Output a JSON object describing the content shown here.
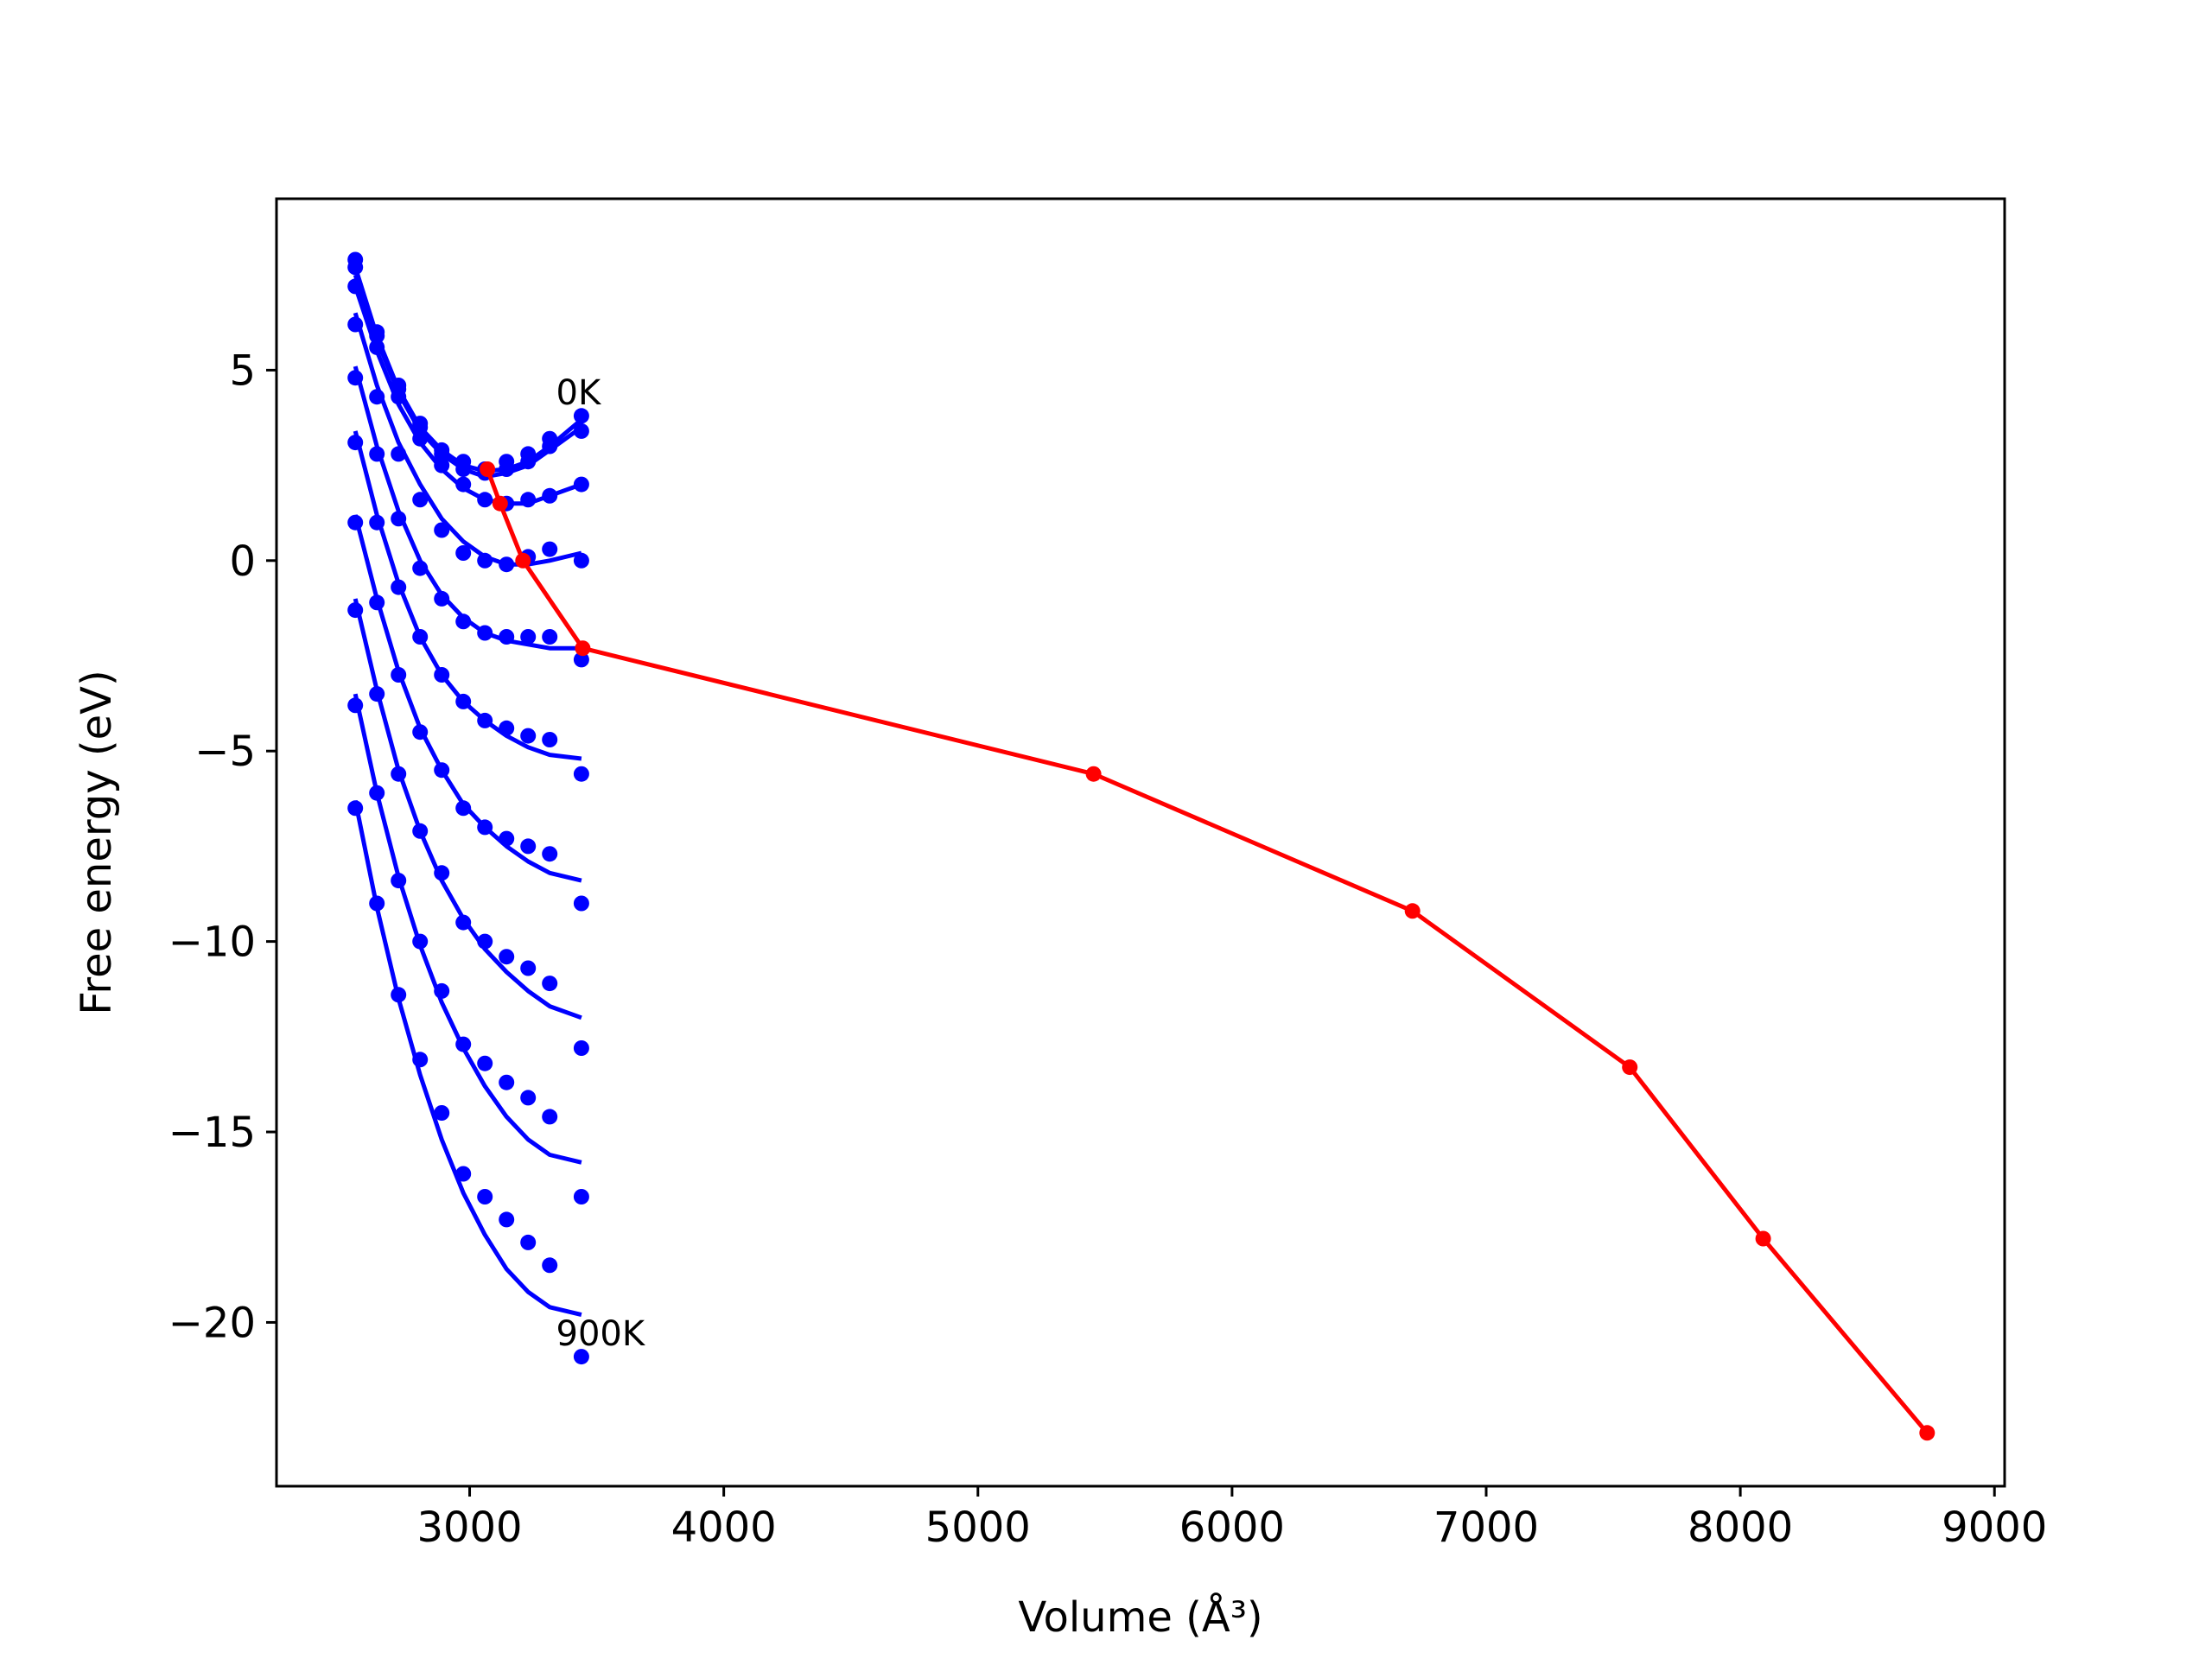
{
  "chart_data": {
    "type": "line",
    "title": "",
    "xlabel": "Volume (Å³)",
    "ylabel": "Free energy (eV)",
    "xlim": [
      2240,
      9040
    ],
    "ylim": [
      -24.3,
      9.5
    ],
    "xticks": [
      3000,
      4000,
      5000,
      6000,
      7000,
      8000,
      9000
    ],
    "yticks": [
      -20,
      -15,
      -10,
      -5,
      0,
      5
    ],
    "xtick_labels": [
      "3000",
      "4000",
      "5000",
      "6000",
      "7000",
      "8000",
      "9000"
    ],
    "ytick_labels": [
      "−20",
      "−15",
      "−10",
      "−5",
      "0",
      "5"
    ],
    "grid": false,
    "colors": {
      "curves": "#0000ff",
      "minima": "#ff0000"
    },
    "annotations": [
      {
        "text": "0K",
        "x": 3340,
        "y": 4.1
      },
      {
        "text": "900K",
        "x": 3340,
        "y": -20.6
      }
    ],
    "volumes": [
      2550,
      2635,
      2720,
      2805,
      2890,
      2975,
      3060,
      3145,
      3230,
      3315,
      3440
    ],
    "series": [
      {
        "points": [
          7.9,
          6.0,
          4.6,
          3.6,
          2.9,
          2.6,
          2.4,
          2.6,
          2.8,
          3.2,
          3.8
        ],
        "fit": [
          7.7,
          5.9,
          4.5,
          3.5,
          2.9,
          2.5,
          2.35,
          2.4,
          2.6,
          3.0,
          3.7
        ]
      },
      {
        "points": [
          7.7,
          5.9,
          4.5,
          3.5,
          2.8,
          2.4,
          2.3,
          2.4,
          2.6,
          3.0,
          3.4
        ],
        "fit": [
          7.5,
          5.8,
          4.4,
          3.4,
          2.8,
          2.4,
          2.2,
          2.3,
          2.5,
          2.9,
          3.5
        ]
      },
      {
        "points": [
          7.2,
          5.6,
          4.3,
          3.2,
          2.5,
          2.0,
          1.6,
          1.5,
          1.6,
          1.7,
          2.0
        ],
        "fit": [
          7.2,
          5.5,
          4.1,
          3.1,
          2.4,
          1.9,
          1.6,
          1.5,
          1.5,
          1.7,
          2.0
        ]
      },
      {
        "points": [
          6.2,
          4.3,
          2.8,
          1.6,
          0.8,
          0.2,
          0.0,
          -0.1,
          0.1,
          0.3,
          0.0
        ],
        "fit": [
          6.5,
          4.6,
          3.1,
          2.0,
          1.1,
          0.5,
          0.1,
          -0.1,
          -0.1,
          0.0,
          0.2
        ]
      },
      {
        "points": [
          4.8,
          2.8,
          1.1,
          -0.2,
          -1.0,
          -1.6,
          -1.9,
          -2.0,
          -2.0,
          -2.0,
          -2.6
        ],
        "fit": [
          5.1,
          3.0,
          1.3,
          0.0,
          -0.9,
          -1.5,
          -1.9,
          -2.1,
          -2.2,
          -2.3,
          -2.3
        ]
      },
      {
        "points": [
          3.1,
          1.0,
          -0.7,
          -2.0,
          -3.0,
          -3.7,
          -4.2,
          -4.4,
          -4.6,
          -4.7,
          -5.6
        ],
        "fit": [
          3.4,
          1.2,
          -0.6,
          -2.0,
          -3.0,
          -3.7,
          -4.2,
          -4.6,
          -4.9,
          -5.1,
          -5.2
        ]
      },
      {
        "points": [
          1.0,
          -1.1,
          -3.0,
          -4.5,
          -5.5,
          -6.5,
          -7.0,
          -7.3,
          -7.5,
          -7.7,
          -9.0
        ],
        "fit": [
          1.2,
          -1.0,
          -2.9,
          -4.4,
          -5.5,
          -6.4,
          -7.0,
          -7.5,
          -7.9,
          -8.2,
          -8.4
        ]
      },
      {
        "points": [
          -1.3,
          -3.5,
          -5.6,
          -7.1,
          -8.2,
          -9.5,
          -10.0,
          -10.4,
          -10.7,
          -11.1,
          -12.8
        ],
        "fit": [
          -1.0,
          -3.4,
          -5.5,
          -7.1,
          -8.4,
          -9.4,
          -10.2,
          -10.8,
          -11.3,
          -11.7,
          -12.0
        ]
      },
      {
        "points": [
          -3.8,
          -6.1,
          -8.4,
          -10.0,
          -11.3,
          -12.7,
          -13.2,
          -13.7,
          -14.1,
          -14.6,
          -16.7
        ],
        "fit": [
          -3.5,
          -6.1,
          -8.3,
          -10.1,
          -11.6,
          -12.8,
          -13.8,
          -14.6,
          -15.2,
          -15.6,
          -15.8
        ]
      },
      {
        "points": [
          -6.5,
          -9.0,
          -11.4,
          -13.1,
          -14.5,
          -16.1,
          -16.7,
          -17.3,
          -17.9,
          -18.5,
          -20.9
        ],
        "fit": [
          -6.3,
          -9.1,
          -11.5,
          -13.5,
          -15.2,
          -16.6,
          -17.7,
          -18.6,
          -19.2,
          -19.6,
          -19.8
        ]
      }
    ],
    "minima_path": {
      "x": [
        3070,
        3120,
        3210,
        3445,
        5455,
        6710,
        7565,
        8090,
        8735
      ],
      "y": [
        2.4,
        1.5,
        0.0,
        -2.3,
        -5.6,
        -9.2,
        -13.3,
        -17.8,
        -22.9
      ]
    }
  }
}
